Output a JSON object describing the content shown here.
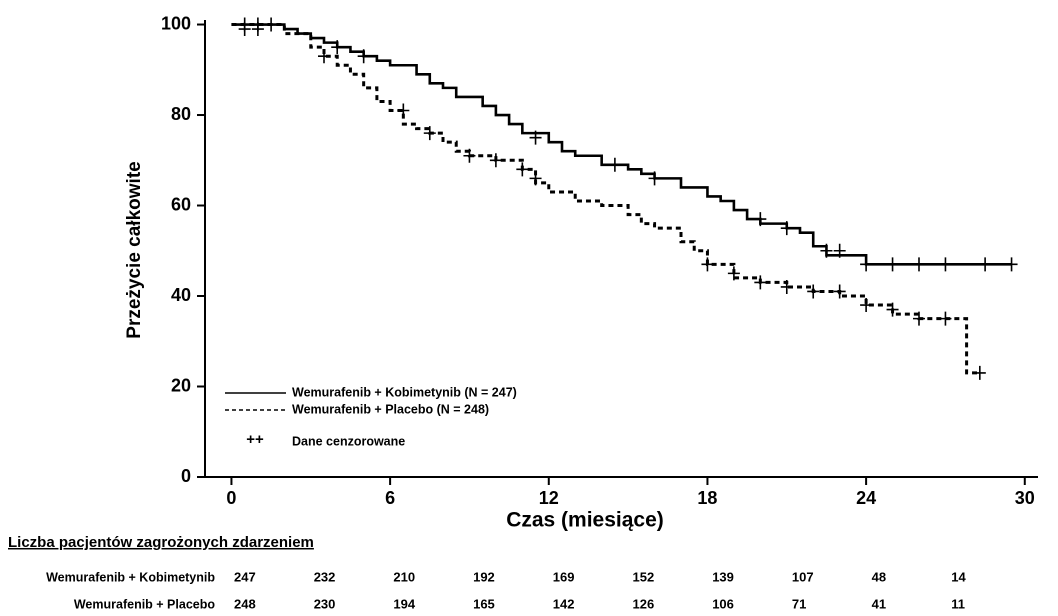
{
  "chart_data": {
    "type": "kaplan-meier",
    "y_label": "Przeżycie całkowite",
    "x_label": "Czas (miesiące)",
    "xlim": [
      -1,
      30.5
    ],
    "ylim": [
      0,
      101
    ],
    "xticks": [
      0,
      6,
      12,
      18,
      24,
      30
    ],
    "yticks": [
      0,
      20,
      40,
      60,
      80,
      100
    ],
    "series": [
      {
        "name": "Wemurafenib + Kobimetynib (N = 247)",
        "color": "#000000",
        "dash": "solid",
        "x": [
          0,
          2,
          2.5,
          3,
          3.5,
          4,
          4.5,
          5,
          5.5,
          6,
          7,
          7.5,
          8,
          8.5,
          9.5,
          10,
          10.5,
          11,
          12,
          12.5,
          13,
          14,
          15,
          15.5,
          16,
          17,
          18,
          18.5,
          19,
          19.5,
          20,
          21,
          21.5,
          22,
          22.5,
          24,
          29.5
        ],
        "values": [
          100,
          99,
          98,
          97,
          96,
          95,
          94,
          93,
          92,
          91,
          89,
          87,
          86,
          84,
          82,
          80,
          78,
          76,
          74,
          72,
          71,
          69,
          68,
          67,
          66,
          64,
          62,
          61,
          59,
          57,
          56,
          55,
          54,
          51,
          49,
          47,
          47
        ],
        "censored": {
          "x": [
            0.5,
            1,
            1.5,
            4,
            5,
            11.5,
            14.5,
            16,
            20,
            21,
            22.5,
            23,
            24,
            25,
            26,
            27,
            28.5,
            29.5
          ],
          "y": [
            100,
            100,
            100,
            95,
            93,
            75,
            69,
            66,
            57,
            55,
            50,
            50,
            47,
            47,
            47,
            47,
            47,
            47
          ]
        }
      },
      {
        "name": "Wemurafenib + Placebo (N = 248)",
        "color": "#000000",
        "dash": "dashed",
        "x": [
          0,
          2,
          3,
          3.5,
          4,
          4.5,
          5,
          5.5,
          6,
          6.5,
          7,
          7.5,
          8,
          8.5,
          9,
          10,
          11,
          11.5,
          12,
          13,
          14,
          15,
          15.5,
          16,
          17,
          17.5,
          18,
          19,
          20,
          21,
          22,
          23,
          24,
          25,
          26,
          27.8,
          28.3
        ],
        "values": [
          100,
          98,
          95,
          93,
          91,
          89,
          86,
          83,
          81,
          78,
          77,
          76,
          74,
          72,
          71,
          70,
          68,
          65,
          63,
          61,
          60,
          58,
          56,
          55,
          52,
          50,
          47,
          44,
          43,
          42,
          41,
          40,
          38,
          36,
          35,
          23,
          23
        ],
        "censored": {
          "x": [
            0.5,
            1,
            3.5,
            6.5,
            7.5,
            9,
            10,
            11,
            11.5,
            18,
            19,
            20,
            21,
            22,
            23,
            24,
            25,
            26,
            27,
            28.3
          ],
          "y": [
            99,
            99,
            93,
            81,
            76,
            71,
            70,
            68,
            66,
            47,
            45,
            43,
            42,
            41,
            41,
            38,
            37,
            35,
            35,
            23
          ]
        }
      }
    ],
    "censored_legend": {
      "symbol": "++",
      "label": "Dane cenzorowane"
    },
    "risk_table": {
      "title": "Liczba pacjentów zagrożonych zdarzeniem",
      "rows": [
        {
          "label": "Wemurafenib + Kobimetynib",
          "values": [
            247,
            232,
            210,
            192,
            169,
            152,
            139,
            107,
            48,
            14
          ]
        },
        {
          "label": "Wemurafenib + Placebo",
          "values": [
            248,
            230,
            194,
            165,
            142,
            126,
            106,
            71,
            41,
            11
          ]
        }
      ]
    }
  }
}
